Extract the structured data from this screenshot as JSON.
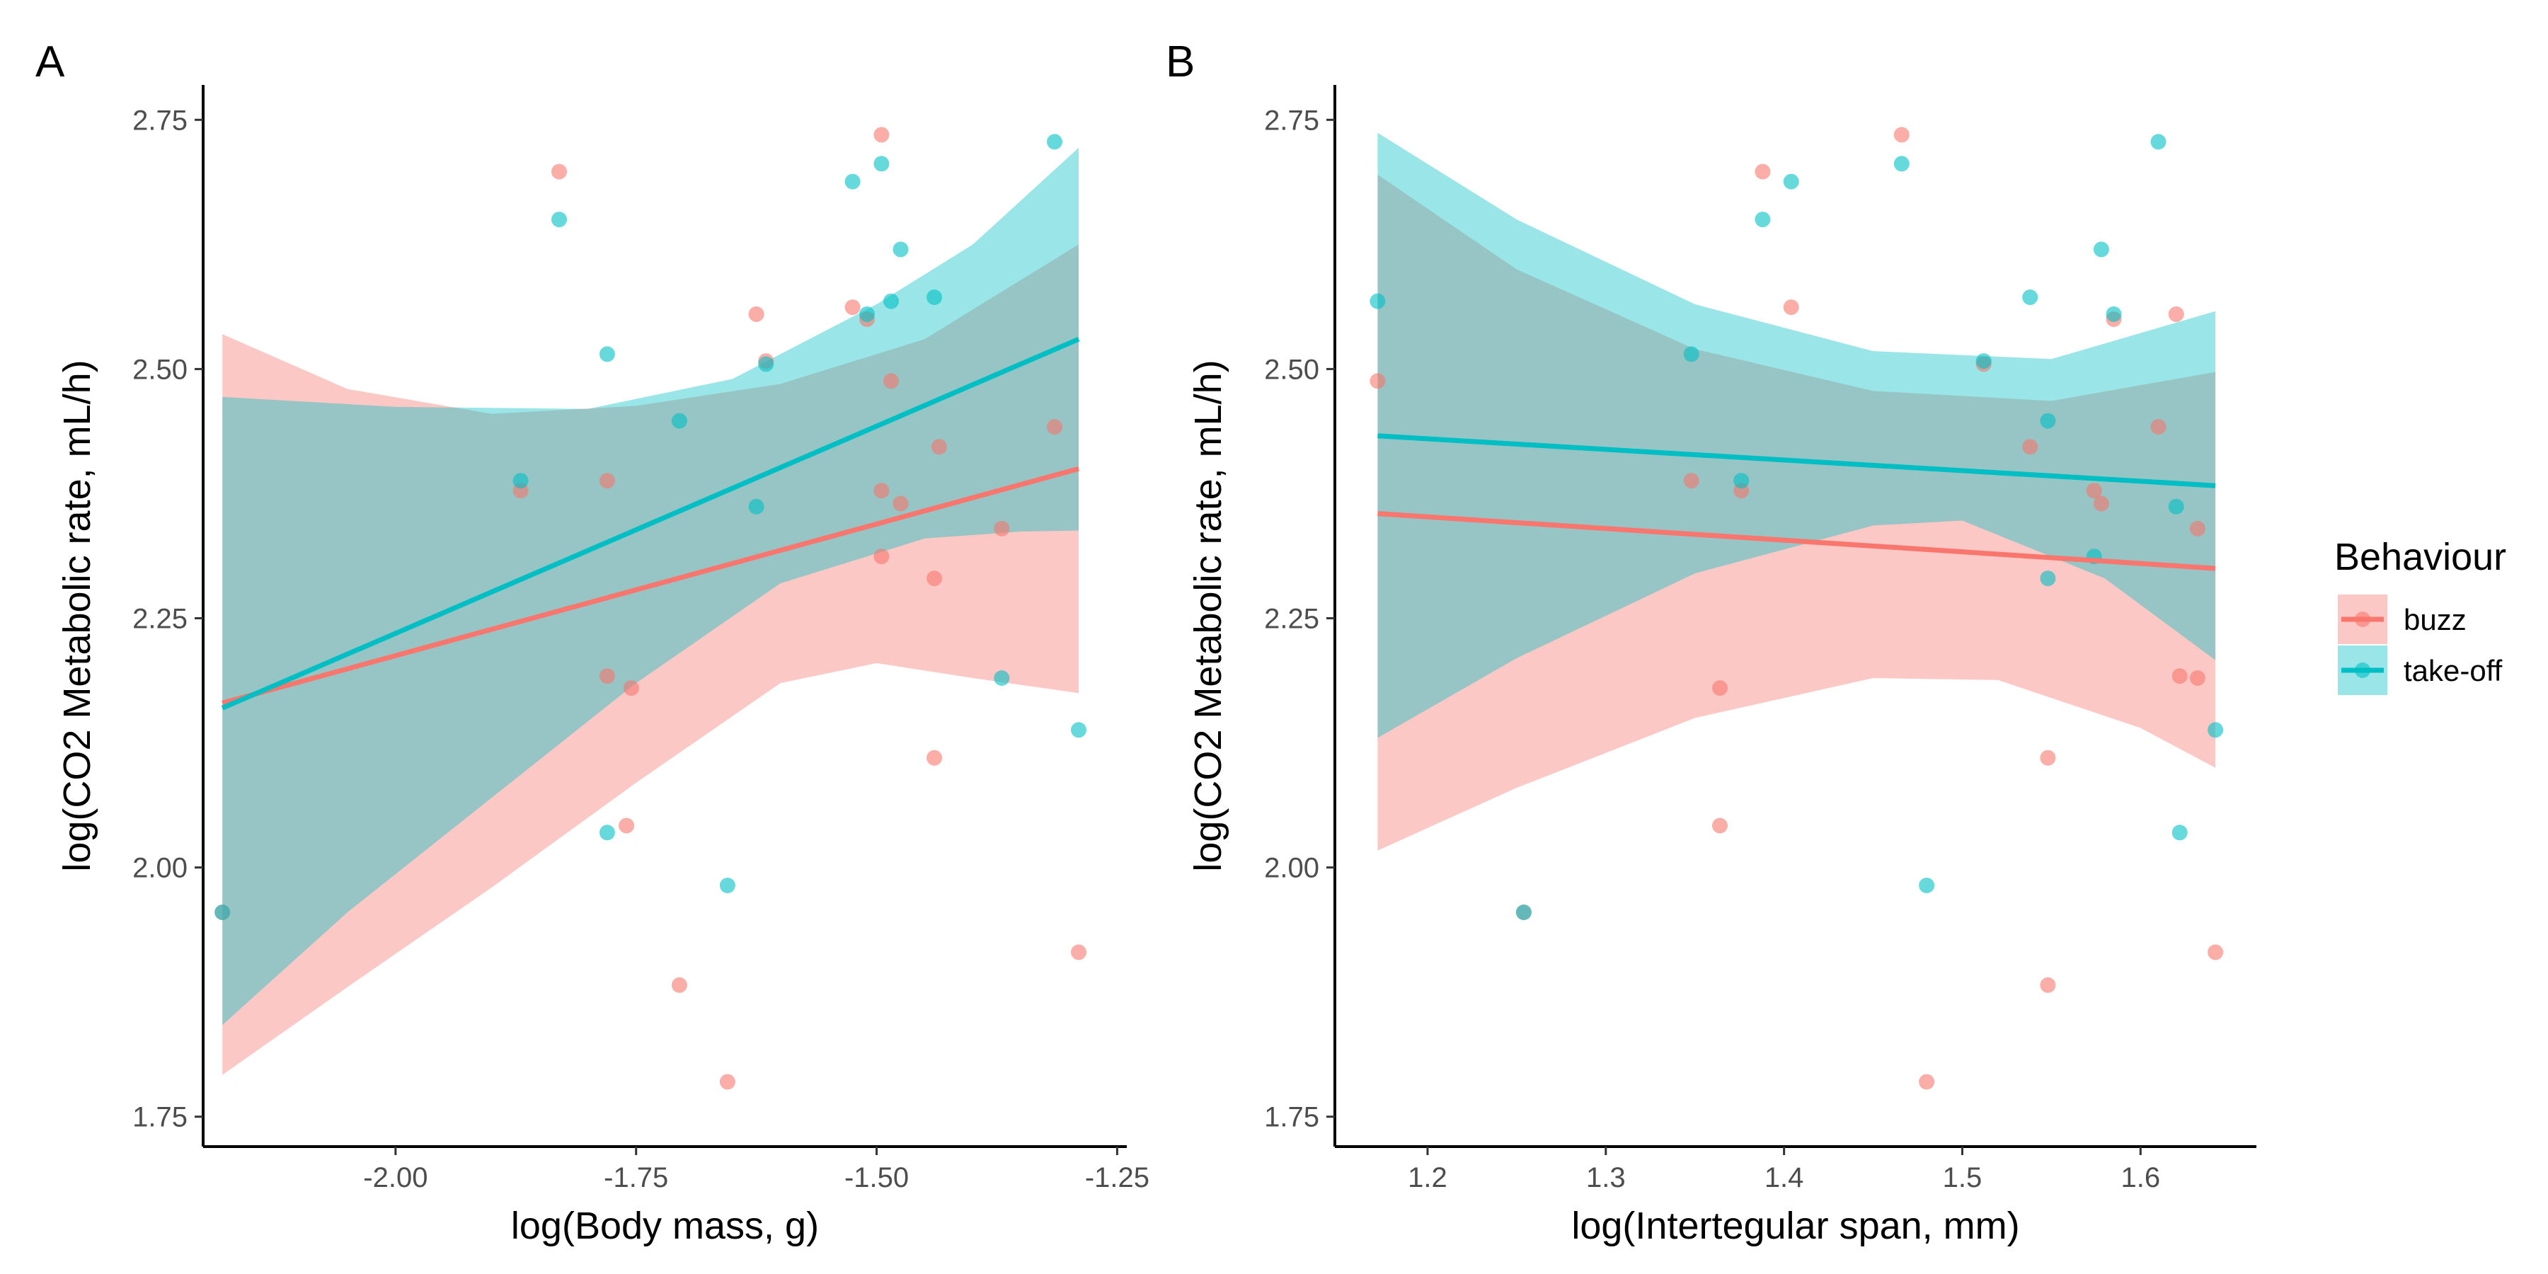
{
  "legend": {
    "title": "Behaviour",
    "items": [
      {
        "label": "buzz",
        "color": "#F8766D"
      },
      {
        "label": "take-off",
        "color": "#00BFC4"
      }
    ]
  },
  "chart_data": [
    {
      "type": "scatter",
      "panel_tag": "A",
      "xlabel": "log(Body mass, g)",
      "ylabel": "log(CO2 Metabolic rate, mL/h)",
      "xlim": [
        -2.2,
        -1.24
      ],
      "ylim": [
        1.72,
        2.785
      ],
      "xticks": [
        -2.0,
        -1.75,
        -1.5,
        -1.25
      ],
      "xtick_labels": [
        "-2.00",
        "-1.75",
        "-1.50",
        "-1.25"
      ],
      "yticks": [
        1.75,
        2.0,
        2.25,
        2.5,
        2.75
      ],
      "ytick_labels": [
        "1.75",
        "2.00",
        "2.25",
        "2.50",
        "2.75"
      ],
      "grid": false,
      "legend": "right",
      "series": [
        {
          "name": "buzz",
          "color": "#F8766D",
          "points": [
            [
              -2.18,
              1.955
            ],
            [
              -1.87,
              2.378
            ],
            [
              -1.83,
              2.698
            ],
            [
              -1.78,
              2.388
            ],
            [
              -1.78,
              2.192
            ],
            [
              -1.76,
              2.042
            ],
            [
              -1.755,
              2.18
            ],
            [
              -1.705,
              1.882
            ],
            [
              -1.655,
              1.785
            ],
            [
              -1.625,
              2.555
            ],
            [
              -1.615,
              2.508
            ],
            [
              -1.525,
              2.562
            ],
            [
              -1.51,
              2.55
            ],
            [
              -1.495,
              2.735
            ],
            [
              -1.495,
              2.378
            ],
            [
              -1.495,
              2.312
            ],
            [
              -1.485,
              2.488
            ],
            [
              -1.475,
              2.365
            ],
            [
              -1.44,
              2.11
            ],
            [
              -1.44,
              2.29
            ],
            [
              -1.435,
              2.422
            ],
            [
              -1.37,
              2.34
            ],
            [
              -1.315,
              2.442
            ],
            [
              -1.29,
              1.915
            ]
          ],
          "fit": {
            "x": [
              -2.18,
              -1.29
            ],
            "y": [
              2.165,
              2.4
            ]
          },
          "ci_upper": [
            [
              -2.18,
              2.535
            ],
            [
              -2.05,
              2.48
            ],
            [
              -1.9,
              2.455
            ],
            [
              -1.75,
              2.463
            ],
            [
              -1.6,
              2.485
            ],
            [
              -1.45,
              2.53
            ],
            [
              -1.29,
              2.625
            ]
          ],
          "ci_lower": [
            [
              -2.18,
              1.792
            ],
            [
              -2.05,
              1.88
            ],
            [
              -1.9,
              1.98
            ],
            [
              -1.75,
              2.085
            ],
            [
              -1.6,
              2.185
            ],
            [
              -1.5,
              2.205
            ],
            [
              -1.4,
              2.19
            ],
            [
              -1.29,
              2.175
            ]
          ]
        },
        {
          "name": "take-off",
          "color": "#00BFC4",
          "points": [
            [
              -2.18,
              1.955
            ],
            [
              -1.87,
              2.388
            ],
            [
              -1.83,
              2.65
            ],
            [
              -1.78,
              2.515
            ],
            [
              -1.78,
              2.035
            ],
            [
              -1.705,
              2.448
            ],
            [
              -1.655,
              1.982
            ],
            [
              -1.625,
              2.362
            ],
            [
              -1.615,
              2.505
            ],
            [
              -1.525,
              2.688
            ],
            [
              -1.51,
              2.555
            ],
            [
              -1.495,
              2.706
            ],
            [
              -1.485,
              2.568
            ],
            [
              -1.475,
              2.62
            ],
            [
              -1.44,
              2.572
            ],
            [
              -1.37,
              2.19
            ],
            [
              -1.315,
              2.728
            ],
            [
              -1.29,
              2.138
            ]
          ],
          "fit": {
            "x": [
              -2.18,
              -1.29
            ],
            "y": [
              2.16,
              2.53
            ]
          },
          "ci_upper": [
            [
              -2.18,
              2.472
            ],
            [
              -2.0,
              2.462
            ],
            [
              -1.8,
              2.46
            ],
            [
              -1.65,
              2.49
            ],
            [
              -1.5,
              2.565
            ],
            [
              -1.4,
              2.625
            ],
            [
              -1.29,
              2.722
            ]
          ],
          "ci_lower": [
            [
              -2.18,
              1.842
            ],
            [
              -2.05,
              1.955
            ],
            [
              -1.9,
              2.07
            ],
            [
              -1.75,
              2.185
            ],
            [
              -1.6,
              2.285
            ],
            [
              -1.45,
              2.33
            ],
            [
              -1.35,
              2.337
            ],
            [
              -1.29,
              2.338
            ]
          ]
        }
      ]
    },
    {
      "type": "scatter",
      "panel_tag": "B",
      "xlabel": "log(Intertegular span, mm)",
      "ylabel": "log(CO2 Metabolic rate, mL/h)",
      "xlim": [
        1.148,
        1.665
      ],
      "ylim": [
        1.72,
        2.785
      ],
      "xticks": [
        1.2,
        1.3,
        1.4,
        1.5,
        1.6
      ],
      "xtick_labels": [
        "1.2",
        "1.3",
        "1.4",
        "1.5",
        "1.6"
      ],
      "yticks": [
        1.75,
        2.0,
        2.25,
        2.5,
        2.75
      ],
      "ytick_labels": [
        "1.75",
        "2.00",
        "2.25",
        "2.50",
        "2.75"
      ],
      "grid": false,
      "series": [
        {
          "name": "buzz",
          "color": "#F8766D",
          "points": [
            [
              1.172,
              2.488
            ],
            [
              1.254,
              1.955
            ],
            [
              1.348,
              2.388
            ],
            [
              1.364,
              2.18
            ],
            [
              1.364,
              2.042
            ],
            [
              1.376,
              2.378
            ],
            [
              1.388,
              2.698
            ],
            [
              1.404,
              2.562
            ],
            [
              1.466,
              2.735
            ],
            [
              1.48,
              1.785
            ],
            [
              1.512,
              2.505
            ],
            [
              1.538,
              2.422
            ],
            [
              1.548,
              2.11
            ],
            [
              1.548,
              1.882
            ],
            [
              1.574,
              2.378
            ],
            [
              1.578,
              2.365
            ],
            [
              1.585,
              2.55
            ],
            [
              1.61,
              2.442
            ],
            [
              1.62,
              2.555
            ],
            [
              1.622,
              2.192
            ],
            [
              1.632,
              2.19
            ],
            [
              1.632,
              2.34
            ],
            [
              1.642,
              1.915
            ]
          ],
          "fit": {
            "x": [
              1.172,
              1.642
            ],
            "y": [
              2.355,
              2.3
            ]
          },
          "ci_upper": [
            [
              1.172,
              2.695
            ],
            [
              1.25,
              2.6
            ],
            [
              1.35,
              2.52
            ],
            [
              1.45,
              2.478
            ],
            [
              1.55,
              2.468
            ],
            [
              1.642,
              2.497
            ]
          ],
          "ci_lower": [
            [
              1.172,
              2.017
            ],
            [
              1.25,
              2.08
            ],
            [
              1.35,
              2.15
            ],
            [
              1.45,
              2.19
            ],
            [
              1.52,
              2.188
            ],
            [
              1.6,
              2.14
            ],
            [
              1.642,
              2.1
            ]
          ]
        },
        {
          "name": "take-off",
          "color": "#00BFC4",
          "points": [
            [
              1.172,
              2.568
            ],
            [
              1.254,
              1.955
            ],
            [
              1.348,
              2.515
            ],
            [
              1.376,
              2.388
            ],
            [
              1.388,
              2.65
            ],
            [
              1.404,
              2.688
            ],
            [
              1.466,
              2.706
            ],
            [
              1.48,
              1.982
            ],
            [
              1.512,
              2.508
            ],
            [
              1.538,
              2.572
            ],
            [
              1.548,
              2.448
            ],
            [
              1.548,
              2.29
            ],
            [
              1.574,
              2.312
            ],
            [
              1.578,
              2.62
            ],
            [
              1.585,
              2.555
            ],
            [
              1.61,
              2.728
            ],
            [
              1.62,
              2.362
            ],
            [
              1.622,
              2.035
            ],
            [
              1.642,
              2.138
            ]
          ],
          "fit": {
            "x": [
              1.172,
              1.642
            ],
            "y": [
              2.433,
              2.383
            ]
          },
          "ci_upper": [
            [
              1.172,
              2.737
            ],
            [
              1.25,
              2.65
            ],
            [
              1.35,
              2.565
            ],
            [
              1.45,
              2.518
            ],
            [
              1.55,
              2.51
            ],
            [
              1.642,
              2.558
            ]
          ],
          "ci_lower": [
            [
              1.172,
              2.13
            ],
            [
              1.25,
              2.21
            ],
            [
              1.35,
              2.295
            ],
            [
              1.45,
              2.343
            ],
            [
              1.5,
              2.348
            ],
            [
              1.58,
              2.29
            ],
            [
              1.642,
              2.208
            ]
          ]
        }
      ]
    }
  ]
}
